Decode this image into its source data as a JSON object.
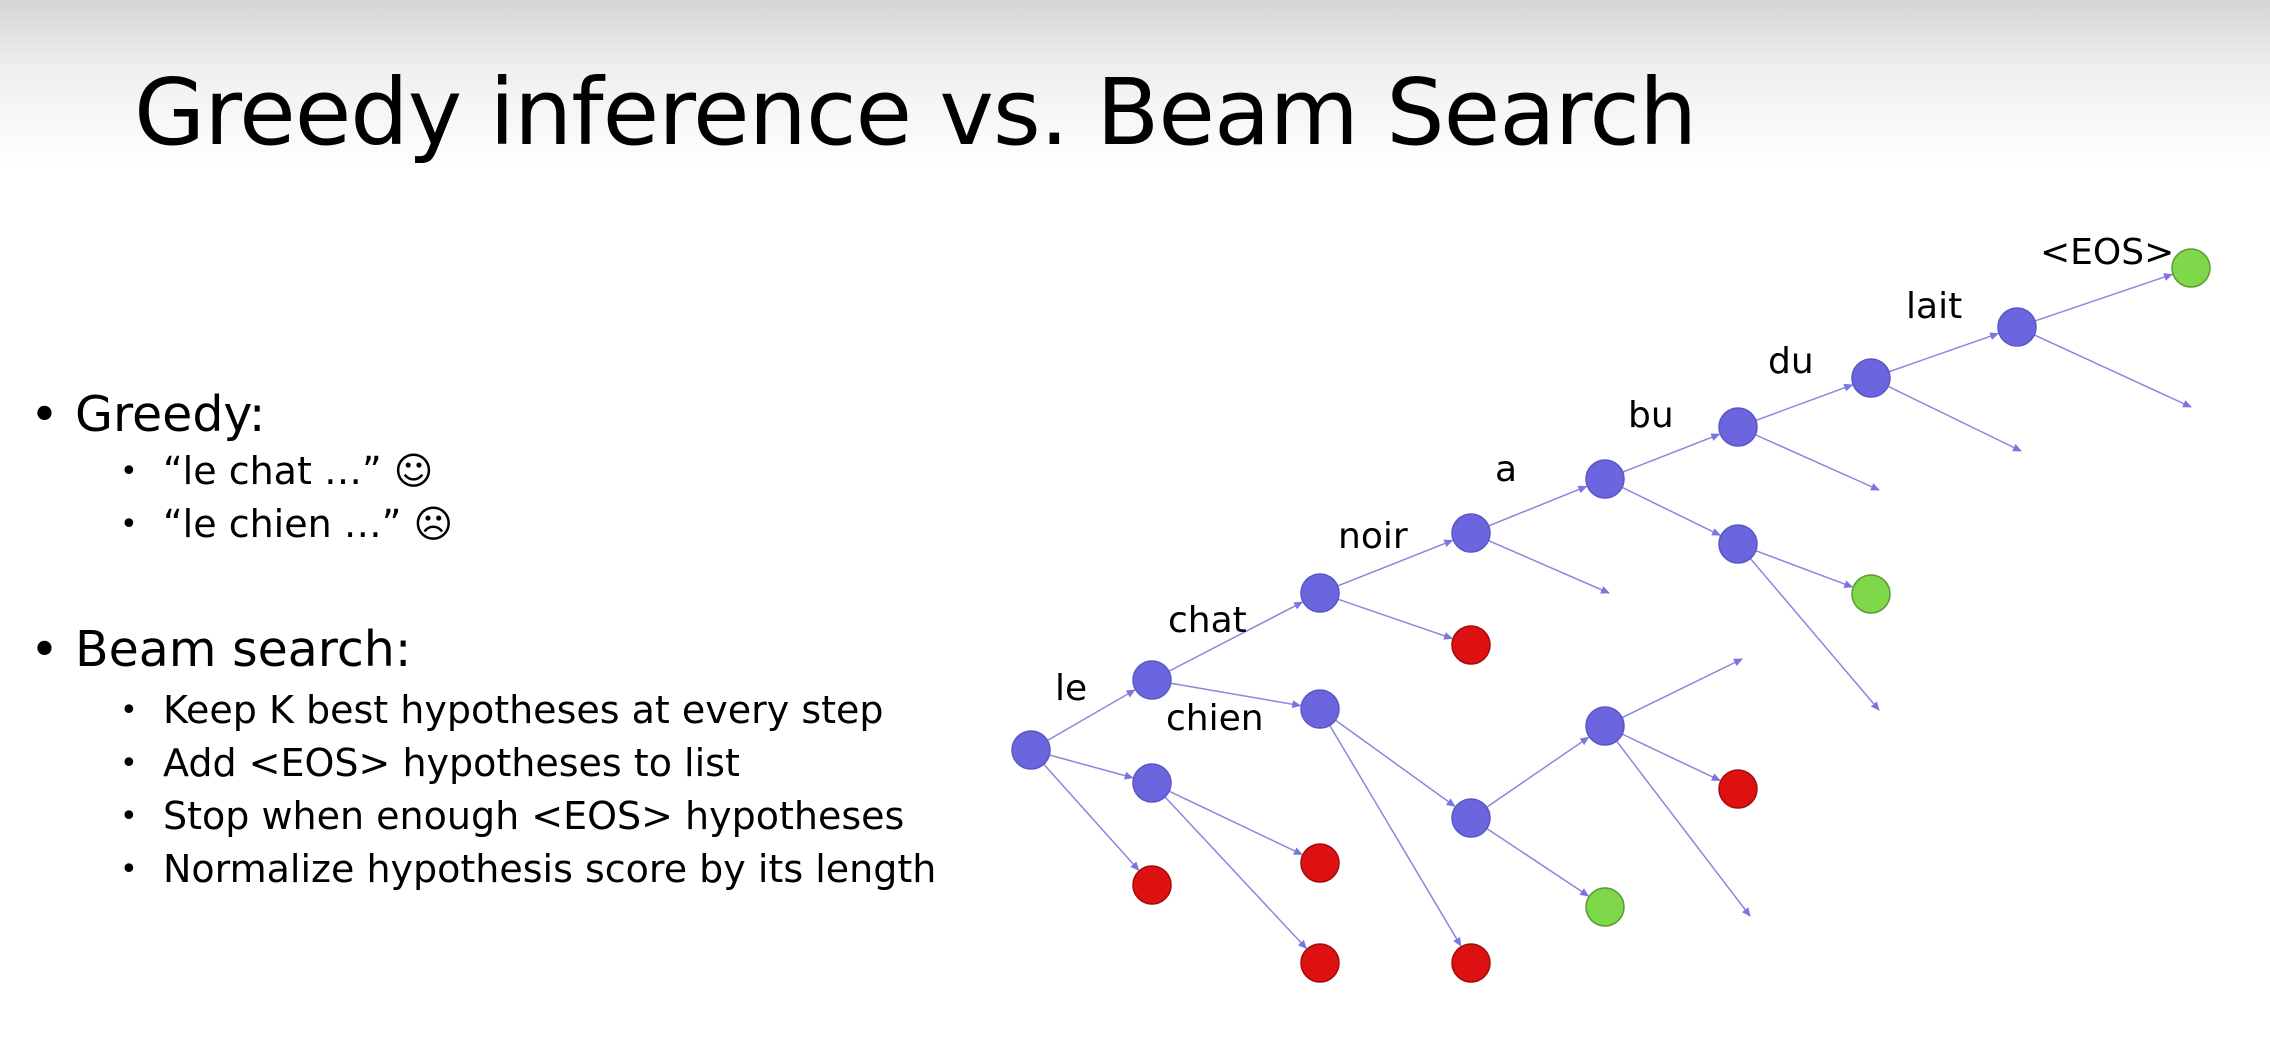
{
  "slide": {
    "title": "Greedy inference vs. Beam Search"
  },
  "greedy": {
    "heading": "Greedy:",
    "examples": [
      "“le chat  …” ☺",
      "“le chien …” ☹"
    ]
  },
  "beam": {
    "heading": "Beam search:",
    "points": [
      "Keep K best hypotheses at every step",
      "Add <EOS> hypotheses to list",
      "Stop when enough <EOS> hypotheses",
      "Normalize hypothesis score by its length"
    ]
  },
  "tree": {
    "words": [
      "le",
      "chat",
      "chien",
      "noir",
      "a",
      "bu",
      "du",
      "lait",
      "<EOS>"
    ],
    "node_colors": {
      "active": "#6b66dd",
      "pruned": "#dd1111",
      "eos": "#7ed84a",
      "edge": "#8a86e0"
    }
  }
}
